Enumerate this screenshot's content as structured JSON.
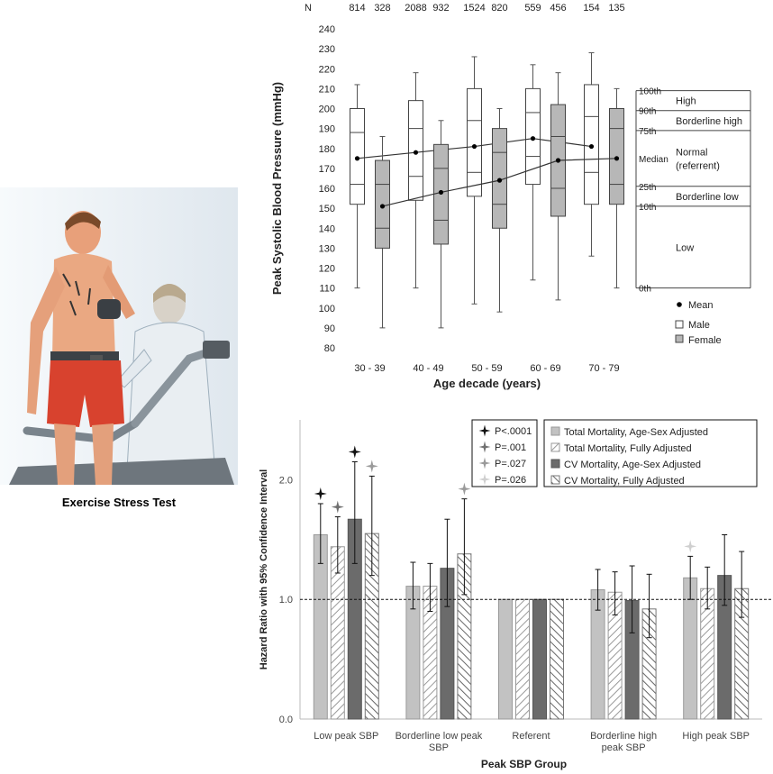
{
  "illustration": {
    "caption": "Exercise Stress Test"
  },
  "colors": {
    "male_fill": "#ffffff",
    "female_fill": "#b7b7b7",
    "bar_total_age_sex": "#c2c2c2",
    "bar_cv_age_sex": "#6b6b6b",
    "hatch_stroke": "#8a8a8a",
    "sig_0001": "#111111",
    "sig_001": "#707070",
    "sig_027": "#9a9a9a",
    "sig_026": "#cfcfcf"
  },
  "chart_data": [
    {
      "type": "box",
      "title": "",
      "n_label": "N",
      "n_values": [
        "814",
        "328",
        "2088",
        "932",
        "1524",
        "820",
        "559",
        "456",
        "154",
        "135"
      ],
      "xlabel": "Age decade (years)",
      "ylabel": "Peak Systolic Blood Pressure (mmHg)",
      "ylim": [
        80,
        240
      ],
      "yticks": [
        80,
        90,
        100,
        110,
        120,
        130,
        140,
        150,
        160,
        170,
        180,
        190,
        200,
        210,
        220,
        230,
        240
      ],
      "categories": [
        "30 - 39",
        "40 - 49",
        "50 - 59",
        "60 - 69",
        "70 - 79"
      ],
      "series": [
        {
          "name": "Male",
          "boxes": [
            {
              "min": 110,
              "q1": 152,
              "median": 162,
              "q3": 200,
              "max": 212,
              "mean": 175,
              "mid": 188
            },
            {
              "min": 110,
              "q1": 154,
              "median": 166,
              "q3": 204,
              "max": 218,
              "mean": 178,
              "mid": 190
            },
            {
              "min": 102,
              "q1": 156,
              "median": 168,
              "q3": 210,
              "max": 226,
              "mean": 181,
              "mid": 194
            },
            {
              "min": 114,
              "q1": 162,
              "median": 176,
              "q3": 210,
              "max": 222,
              "mean": 185,
              "mid": 198
            },
            {
              "min": 126,
              "q1": 152,
              "median": 168,
              "q3": 212,
              "max": 228,
              "mean": 181,
              "mid": 196
            }
          ]
        },
        {
          "name": "Female",
          "boxes": [
            {
              "min": 90,
              "q1": 130,
              "median": 140,
              "q3": 174,
              "max": 186,
              "mean": 151,
              "mid": 162
            },
            {
              "min": 90,
              "q1": 132,
              "median": 144,
              "q3": 182,
              "max": 194,
              "mean": 158,
              "mid": 170
            },
            {
              "min": 98,
              "q1": 140,
              "median": 152,
              "q3": 190,
              "max": 200,
              "mean": 164,
              "mid": 178
            },
            {
              "min": 104,
              "q1": 146,
              "median": 160,
              "q3": 202,
              "max": 218,
              "mean": 174,
              "mid": 186
            },
            {
              "min": 110,
              "q1": 152,
              "median": 162,
              "q3": 200,
              "max": 210,
              "mean": 175,
              "mid": 190
            }
          ]
        }
      ],
      "percentile_guide": {
        "levels": [
          {
            "label": "100th",
            "value": 209
          },
          {
            "label": "90th",
            "value": 199
          },
          {
            "label": "75th",
            "value": 189
          },
          {
            "label": "Median",
            "value": 175
          },
          {
            "label": "25th",
            "value": 161
          },
          {
            "label": "10th",
            "value": 151
          },
          {
            "label": "0th",
            "value": 110
          }
        ],
        "zones": [
          {
            "label": "High",
            "from": 199,
            "to": 209
          },
          {
            "label": "Borderline high",
            "from": 189,
            "to": 199
          },
          {
            "label": "Normal\n(referrent)",
            "from": 161,
            "to": 189
          },
          {
            "label": "Borderline low",
            "from": 151,
            "to": 161
          },
          {
            "label": "Low",
            "from": 110,
            "to": 151
          }
        ]
      },
      "legend": [
        {
          "label": "Mean",
          "symbol": "dot"
        },
        {
          "label": "Male",
          "symbol": "male"
        },
        {
          "label": "Female",
          "symbol": "female"
        }
      ]
    },
    {
      "type": "bar",
      "title": "",
      "xlabel": "Peak SBP Group",
      "ylabel": "Hazard Ratio with 95% Confidence Interval",
      "ylim": [
        0,
        2.5
      ],
      "yticks": [
        "0.0",
        "1.0",
        "2.0"
      ],
      "reference_line": 1.0,
      "categories": [
        "Low peak SBP",
        "Borderline low peak\nSBP",
        "Referent",
        "Borderline high\npeak SBP",
        "High peak SBP"
      ],
      "series": [
        {
          "name": "Total Mortality, Age-Sex Adjusted",
          "style": "solid_light",
          "values": [
            1.54,
            1.11,
            1.0,
            1.08,
            1.18
          ],
          "lo": [
            1.3,
            0.92,
            1.0,
            0.91,
            1.0
          ],
          "hi": [
            1.8,
            1.31,
            1.0,
            1.25,
            1.36
          ]
        },
        {
          "name": "Total Mortality, Fully Adjusted",
          "style": "hatch_light",
          "values": [
            1.44,
            1.11,
            1.0,
            1.06,
            1.09
          ],
          "lo": [
            1.22,
            0.9,
            1.0,
            0.87,
            0.92
          ],
          "hi": [
            1.69,
            1.3,
            1.0,
            1.23,
            1.27
          ]
        },
        {
          "name": "CV Mortality, Age-Sex Adjusted",
          "style": "solid_dark",
          "values": [
            1.67,
            1.26,
            1.0,
            0.99,
            1.2
          ],
          "lo": [
            1.3,
            0.94,
            1.0,
            0.72,
            0.95
          ],
          "hi": [
            2.15,
            1.67,
            1.0,
            1.28,
            1.54
          ]
        },
        {
          "name": "CV Mortality, Fully Adjusted",
          "style": "hatch_heavy",
          "values": [
            1.55,
            1.38,
            1.0,
            0.92,
            1.09
          ],
          "lo": [
            1.2,
            1.04,
            1.0,
            0.68,
            0.85
          ],
          "hi": [
            2.03,
            1.84,
            1.0,
            1.21,
            1.4
          ]
        }
      ],
      "significance_legend": [
        {
          "label": "P<.0001",
          "color_key": "sig_0001"
        },
        {
          "label": "P=.001",
          "color_key": "sig_001"
        },
        {
          "label": "P=.027",
          "color_key": "sig_027"
        },
        {
          "label": "P=.026",
          "color_key": "sig_026"
        }
      ],
      "significance_marks": [
        {
          "category": 0,
          "series": 0,
          "level": 0
        },
        {
          "category": 0,
          "series": 1,
          "level": 1
        },
        {
          "category": 0,
          "series": 2,
          "level": 0
        },
        {
          "category": 0,
          "series": 3,
          "level": 2
        },
        {
          "category": 1,
          "series": 3,
          "level": 2
        },
        {
          "category": 4,
          "series": 0,
          "level": 3
        }
      ]
    }
  ]
}
